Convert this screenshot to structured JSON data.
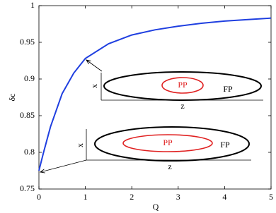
{
  "chart_data": {
    "type": "line",
    "xlabel": "Q",
    "ylabel": "δc",
    "x": [
      0,
      0.1,
      0.25,
      0.5,
      0.75,
      1,
      1.5,
      2,
      2.5,
      3,
      3.5,
      4,
      4.5,
      5
    ],
    "series": [
      {
        "color": "#1f3fe0",
        "values": [
          0.775,
          0.8,
          0.835,
          0.88,
          0.908,
          0.928,
          0.948,
          0.96,
          0.967,
          0.972,
          0.976,
          0.979,
          0.981,
          0.983
        ]
      }
    ],
    "xlim": [
      0,
      5
    ],
    "xticks": [
      0,
      1,
      2,
      3,
      4,
      5
    ],
    "ylim": [
      0.75,
      1
    ],
    "yticks": [
      0.75,
      0.8,
      0.85,
      0.9,
      0.95,
      1
    ],
    "annotations": {
      "inset_upper": {
        "inner": "PP",
        "outer": "FP",
        "vertical_axis": "x",
        "horizontal_axis": "z"
      },
      "inset_lower": {
        "inner": "PP",
        "outer": "FP",
        "vertical_axis": "x",
        "horizontal_axis": "z"
      }
    }
  }
}
